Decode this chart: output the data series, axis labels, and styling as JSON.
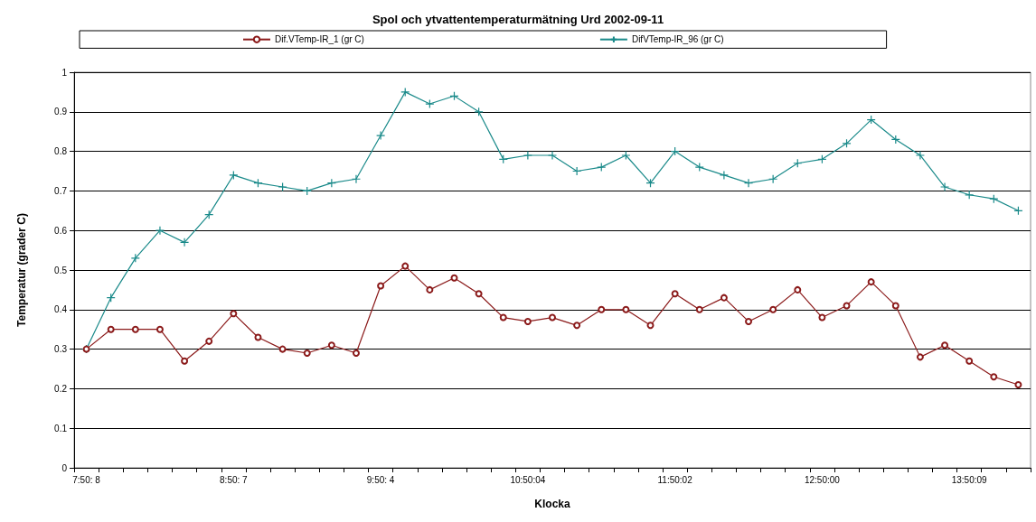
{
  "chart_data": {
    "type": "line",
    "title": "Spol och ytvattentemperaturmätning Urd 2002-09-11",
    "xlabel": "Klocka",
    "ylabel": "Temperatur (grader C)",
    "categories": [
      "7:50: 8",
      null,
      null,
      null,
      null,
      null,
      "8:50: 7",
      null,
      null,
      null,
      null,
      null,
      "9:50: 4",
      null,
      null,
      null,
      null,
      null,
      "10:50:04",
      null,
      null,
      null,
      null,
      null,
      "11:50:02",
      null,
      null,
      null,
      null,
      null,
      "12:50:00",
      null,
      null,
      null,
      null,
      null,
      "13:50:09",
      null,
      null
    ],
    "series": [
      {
        "name": "Dif.VTemp-IR_1 (gr C)",
        "color": "#8b1a1a",
        "marker": "circle",
        "values": [
          0.3,
          0.35,
          0.35,
          0.35,
          0.27,
          0.32,
          0.39,
          0.33,
          0.3,
          0.29,
          0.31,
          0.29,
          0.46,
          0.51,
          0.45,
          0.48,
          0.44,
          0.38,
          0.37,
          0.38,
          0.36,
          0.4,
          0.4,
          0.36,
          0.44,
          0.4,
          0.43,
          0.37,
          0.4,
          0.45,
          0.38,
          0.41,
          0.47,
          0.41,
          0.28,
          0.31,
          0.27,
          0.23,
          0.21
        ]
      },
      {
        "name": "DifVTemp-IR_96 (gr C)",
        "color": "#1a8a8a",
        "marker": "cross",
        "values": [
          0.3,
          0.43,
          0.53,
          0.6,
          0.57,
          0.64,
          0.74,
          0.72,
          0.71,
          0.7,
          0.72,
          0.73,
          0.84,
          0.95,
          0.92,
          0.94,
          0.9,
          0.78,
          0.79,
          0.79,
          0.75,
          0.76,
          0.79,
          0.72,
          0.8,
          0.76,
          0.74,
          0.72,
          0.73,
          0.77,
          0.78,
          0.82,
          0.88,
          0.83,
          0.79,
          0.71,
          0.69,
          0.68,
          0.65
        ]
      }
    ],
    "ylim": [
      0,
      1
    ],
    "yticks": [
      0,
      0.1,
      0.2,
      0.3,
      0.4,
      0.5,
      0.6,
      0.7,
      0.8,
      0.9,
      1
    ],
    "grid": "y",
    "legend": "top"
  }
}
